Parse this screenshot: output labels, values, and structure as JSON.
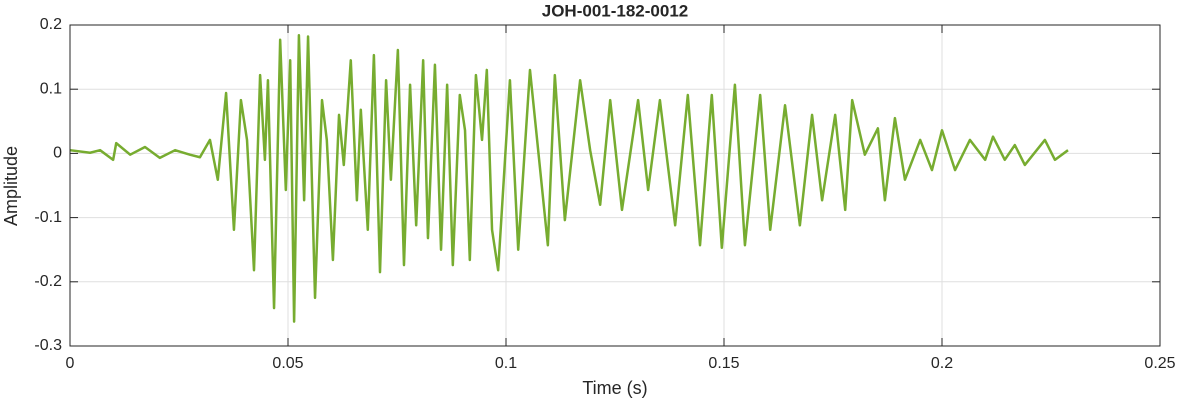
{
  "chart_data": {
    "type": "line",
    "title": "JOH-001-182-0012",
    "xlabel": "Time (s)",
    "ylabel": "Amplitude",
    "xlim": [
      0,
      0.25
    ],
    "xticks": [
      0,
      0.05,
      0.1,
      0.15,
      0.2,
      0.25
    ],
    "ylim": [
      -0.3,
      0.2
    ],
    "yticks": [
      -0.3,
      -0.2,
      -0.1,
      0,
      0.1,
      0.2
    ],
    "grid": true,
    "x": [
      0,
      0.0046,
      0.0069,
      0.0099,
      0.0106,
      0.0138,
      0.0172,
      0.0206,
      0.0241,
      0.0275,
      0.0298,
      0.0321,
      0.0339,
      0.0358,
      0.0376,
      0.0392,
      0.0406,
      0.0422,
      0.0436,
      0.0447,
      0.0454,
      0.0468,
      0.0482,
      0.0495,
      0.0505,
      0.0514,
      0.0525,
      0.0537,
      0.0546,
      0.0562,
      0.0578,
      0.0589,
      0.0603,
      0.0617,
      0.0628,
      0.0644,
      0.0658,
      0.0667,
      0.0683,
      0.0697,
      0.0711,
      0.0725,
      0.0736,
      0.0752,
      0.0766,
      0.078,
      0.0794,
      0.081,
      0.0821,
      0.0837,
      0.0851,
      0.0865,
      0.0878,
      0.0894,
      0.0906,
      0.0917,
      0.0931,
      0.0945,
      0.0956,
      0.0968,
      0.0982,
      0.1009,
      0.1028,
      0.1055,
      0.1096,
      0.1112,
      0.1135,
      0.117,
      0.1193,
      0.1216,
      0.1239,
      0.1266,
      0.1303,
      0.1326,
      0.1353,
      0.1388,
      0.1417,
      0.1445,
      0.1472,
      0.1495,
      0.1525,
      0.1548,
      0.1583,
      0.1606,
      0.164,
      0.1674,
      0.1702,
      0.1725,
      0.1755,
      0.1778,
      0.1794,
      0.1823,
      0.1853,
      0.1869,
      0.1892,
      0.1915,
      0.195,
      0.1977,
      0.2,
      0.203,
      0.2064,
      0.2099,
      0.2117,
      0.2144,
      0.2167,
      0.219,
      0.2236,
      0.2259,
      0.2289
    ],
    "series": [
      {
        "color": "#77ac30",
        "values": [
          0.005,
          0.001,
          0.005,
          -0.01,
          0.016,
          -0.002,
          0.01,
          -0.007,
          0.005,
          -0.002,
          -0.006,
          0.021,
          -0.041,
          0.094,
          -0.119,
          0.083,
          0.021,
          -0.182,
          0.122,
          -0.01,
          0.114,
          -0.241,
          0.177,
          -0.057,
          0.145,
          -0.262,
          0.184,
          -0.073,
          0.182,
          -0.225,
          0.083,
          0.021,
          -0.166,
          0.06,
          -0.018,
          0.145,
          -0.073,
          0.068,
          -0.119,
          0.153,
          -0.185,
          0.114,
          -0.041,
          0.161,
          -0.174,
          0.107,
          -0.112,
          0.145,
          -0.132,
          0.138,
          -0.15,
          0.107,
          -0.174,
          0.091,
          0.036,
          -0.166,
          0.122,
          0.021,
          0.13,
          -0.119,
          -0.182,
          0.114,
          -0.15,
          0.13,
          -0.143,
          0.122,
          -0.104,
          0.114,
          0.005,
          -0.08,
          0.083,
          -0.088,
          0.083,
          -0.057,
          0.083,
          -0.112,
          0.091,
          -0.143,
          0.091,
          -0.147,
          0.107,
          -0.143,
          0.091,
          -0.119,
          0.075,
          -0.112,
          0.06,
          -0.073,
          0.06,
          -0.088,
          0.083,
          -0.002,
          0.039,
          -0.073,
          0.055,
          -0.041,
          0.021,
          -0.026,
          0.036,
          -0.026,
          0.021,
          -0.01,
          0.026,
          -0.01,
          0.013,
          -0.018,
          0.021,
          -0.01,
          0.005
        ]
      }
    ]
  }
}
